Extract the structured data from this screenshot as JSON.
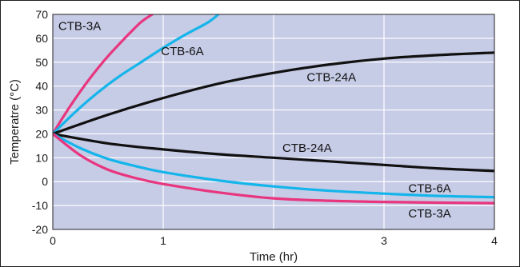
{
  "chart_data": {
    "type": "line",
    "title": "",
    "xlabel": "Time (hr)",
    "ylabel": "Temperatre (°C)",
    "xlim": [
      0,
      4
    ],
    "ylim": [
      -20,
      70
    ],
    "x_ticks": [
      0,
      1,
      3,
      4
    ],
    "x_tick_labels": [
      "0",
      "1",
      "3",
      "4"
    ],
    "x_grid": [
      0,
      1,
      2,
      3,
      4
    ],
    "y_ticks": [
      -20,
      -10,
      0,
      10,
      20,
      30,
      40,
      50,
      60,
      70
    ],
    "grid": true,
    "colors": {
      "plot_bg": "#c6cbe6",
      "grid": "#ffffff",
      "magenta": "#e8357e",
      "cyan": "#14b5ea",
      "black": "#111111"
    },
    "series": [
      {
        "name": "CTB-3A",
        "color": "#e8357e",
        "x": [
          0,
          0.1,
          0.2,
          0.3,
          0.4,
          0.5,
          0.6,
          0.7,
          0.8,
          0.9
        ],
        "y": [
          20,
          27.5,
          34.5,
          41,
          47,
          52.5,
          57.5,
          62.3,
          66.8,
          70
        ]
      },
      {
        "name": "CTB-6A",
        "color": "#14b5ea",
        "x": [
          0,
          0.2,
          0.4,
          0.6,
          0.8,
          1.0,
          1.2,
          1.4,
          1.5
        ],
        "y": [
          20,
          29,
          37,
          44,
          50,
          56,
          61.5,
          66.5,
          70
        ]
      },
      {
        "name": "CTB-24A",
        "color": "#111111",
        "x": [
          0,
          0.5,
          1.0,
          1.5,
          2.0,
          2.5,
          3.0,
          3.5,
          4.0
        ],
        "y": [
          20,
          28,
          35,
          41,
          45.5,
          49,
          51.5,
          53,
          54
        ]
      },
      {
        "name": "CTB-24A",
        "color": "#111111",
        "x": [
          0,
          0.5,
          1.0,
          1.5,
          2.0,
          2.5,
          3.0,
          3.5,
          4.0
        ],
        "y": [
          20,
          16,
          13.5,
          11.5,
          10,
          8.5,
          7,
          5.5,
          4.5
        ]
      },
      {
        "name": "CTB-6A",
        "color": "#14b5ea",
        "x": [
          0,
          0.25,
          0.5,
          0.75,
          1.0,
          1.5,
          2.0,
          2.5,
          3.0,
          3.5,
          4.0
        ],
        "y": [
          20,
          14,
          9.5,
          6.5,
          4,
          0.5,
          -2,
          -3.8,
          -5,
          -6,
          -6.5
        ]
      },
      {
        "name": "CTB-3A",
        "color": "#e8357e",
        "x": [
          0,
          0.25,
          0.5,
          0.75,
          1.0,
          1.5,
          2.0,
          2.5,
          3.0,
          3.5,
          4.0
        ],
        "y": [
          20,
          11,
          5,
          1.5,
          -1,
          -4.5,
          -7,
          -8,
          -8.5,
          -8.8,
          -9
        ]
      }
    ],
    "annotations": [
      {
        "text": "CTB-3A",
        "x": 0.05,
        "y": 63.5
      },
      {
        "text": "CTB-6A",
        "x": 0.98,
        "y": 53
      },
      {
        "text": "CTB-24A",
        "x": 2.3,
        "y": 42
      },
      {
        "text": "CTB-24A",
        "x": 2.08,
        "y": 12.5
      },
      {
        "text": "CTB-6A",
        "x": 3.22,
        "y": -4.5
      },
      {
        "text": "CTB-3A",
        "x": 3.22,
        "y": -15
      }
    ]
  }
}
